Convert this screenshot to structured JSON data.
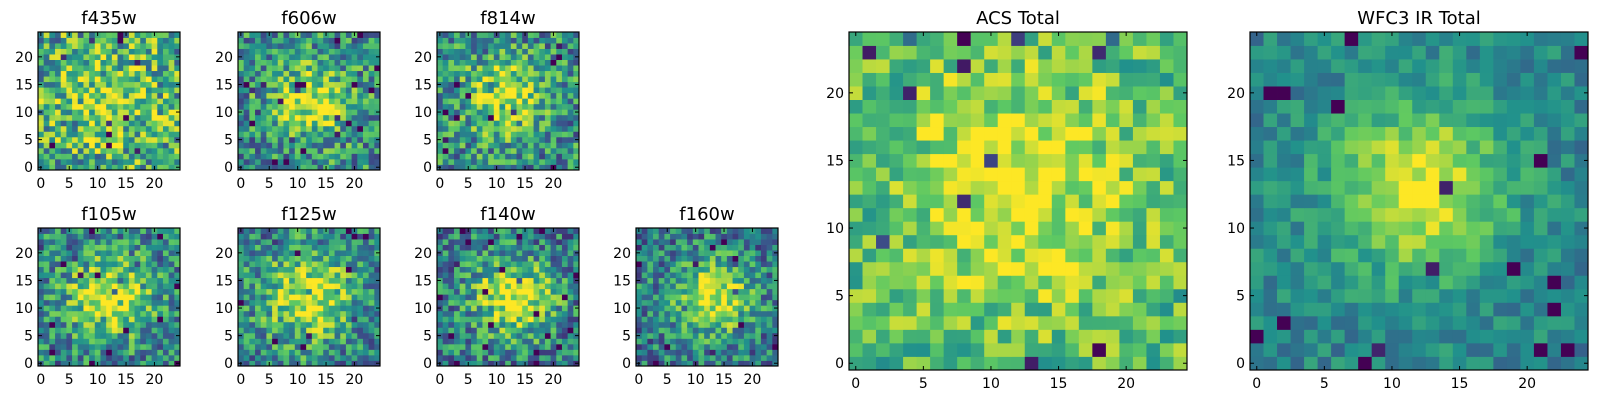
{
  "figure": {
    "colormap": "viridis",
    "colormap_stops": [
      "#440154",
      "#3b528b",
      "#21918c",
      "#5ec962",
      "#fde725"
    ]
  },
  "chart_data": [
    {
      "type": "heatmap",
      "title": "f435w",
      "grid_size": 25,
      "xlim": [
        0,
        24
      ],
      "ylim": [
        0,
        24
      ],
      "xticks": [
        0,
        5,
        10,
        15,
        20
      ],
      "yticks": [
        0,
        5,
        10,
        15,
        20
      ],
      "peak": [
        12,
        12
      ],
      "spread": 6,
      "peak_level": 0.82,
      "background_level": 0.6,
      "noise": 0.36,
      "seed": 11
    },
    {
      "type": "heatmap",
      "title": "f606w",
      "grid_size": 25,
      "xlim": [
        0,
        24
      ],
      "ylim": [
        0,
        24
      ],
      "xticks": [
        0,
        5,
        10,
        15,
        20
      ],
      "yticks": [
        0,
        5,
        10,
        15,
        20
      ],
      "peak": [
        12,
        12
      ],
      "spread": 4.5,
      "peak_level": 0.95,
      "background_level": 0.5,
      "noise": 0.32,
      "seed": 23
    },
    {
      "type": "heatmap",
      "title": "f814w",
      "grid_size": 25,
      "xlim": [
        0,
        24
      ],
      "ylim": [
        0,
        24
      ],
      "xticks": [
        0,
        5,
        10,
        15,
        20
      ],
      "yticks": [
        0,
        5,
        10,
        15,
        20
      ],
      "peak": [
        11,
        13
      ],
      "spread": 4.5,
      "peak_level": 0.95,
      "background_level": 0.5,
      "noise": 0.32,
      "seed": 37
    },
    {
      "type": "heatmap",
      "title": "f105w",
      "grid_size": 25,
      "xlim": [
        0,
        24
      ],
      "ylim": [
        0,
        24
      ],
      "xticks": [
        0,
        5,
        10,
        15,
        20
      ],
      "yticks": [
        0,
        5,
        10,
        15,
        20
      ],
      "peak": [
        12,
        12
      ],
      "spread": 5,
      "peak_level": 0.98,
      "background_level": 0.45,
      "noise": 0.3,
      "seed": 41
    },
    {
      "type": "heatmap",
      "title": "f125w",
      "grid_size": 25,
      "xlim": [
        0,
        24
      ],
      "ylim": [
        0,
        24
      ],
      "xticks": [
        0,
        5,
        10,
        15,
        20
      ],
      "yticks": [
        0,
        5,
        10,
        15,
        20
      ],
      "peak": [
        12,
        12
      ],
      "spread": 5.5,
      "peak_level": 0.95,
      "background_level": 0.45,
      "noise": 0.3,
      "seed": 53
    },
    {
      "type": "heatmap",
      "title": "f140w",
      "grid_size": 25,
      "xlim": [
        0,
        24
      ],
      "ylim": [
        0,
        24
      ],
      "xticks": [
        0,
        5,
        10,
        15,
        20
      ],
      "yticks": [
        0,
        5,
        10,
        15,
        20
      ],
      "peak": [
        13,
        12
      ],
      "spread": 5,
      "peak_level": 0.97,
      "background_level": 0.42,
      "noise": 0.3,
      "seed": 67
    },
    {
      "type": "heatmap",
      "title": "f160w",
      "grid_size": 25,
      "xlim": [
        0,
        24
      ],
      "ylim": [
        0,
        24
      ],
      "xticks": [
        0,
        5,
        10,
        15,
        20
      ],
      "yticks": [
        0,
        5,
        10,
        15,
        20
      ],
      "peak": [
        13,
        12
      ],
      "spread": 4.5,
      "peak_level": 0.98,
      "background_level": 0.42,
      "noise": 0.28,
      "seed": 79
    },
    {
      "type": "heatmap",
      "title": "ACS Total",
      "grid_size": 25,
      "xlim": [
        0,
        24
      ],
      "ylim": [
        0,
        24
      ],
      "xticks": [
        0,
        5,
        10,
        15,
        20
      ],
      "yticks": [
        0,
        5,
        10,
        15,
        20
      ],
      "peak": [
        12,
        13
      ],
      "spread": 6,
      "peak_level": 0.98,
      "background_level": 0.68,
      "noise": 0.22,
      "seed": 97
    },
    {
      "type": "heatmap",
      "title": "WFC3 IR Total",
      "grid_size": 25,
      "xlim": [
        0,
        24
      ],
      "ylim": [
        0,
        24
      ],
      "xticks": [
        0,
        5,
        10,
        15,
        20
      ],
      "yticks": [
        0,
        5,
        10,
        15,
        20
      ],
      "peak": [
        12,
        13
      ],
      "spread": 4.5,
      "peak_level": 0.98,
      "background_level": 0.45,
      "noise": 0.14,
      "seed": 113
    }
  ]
}
